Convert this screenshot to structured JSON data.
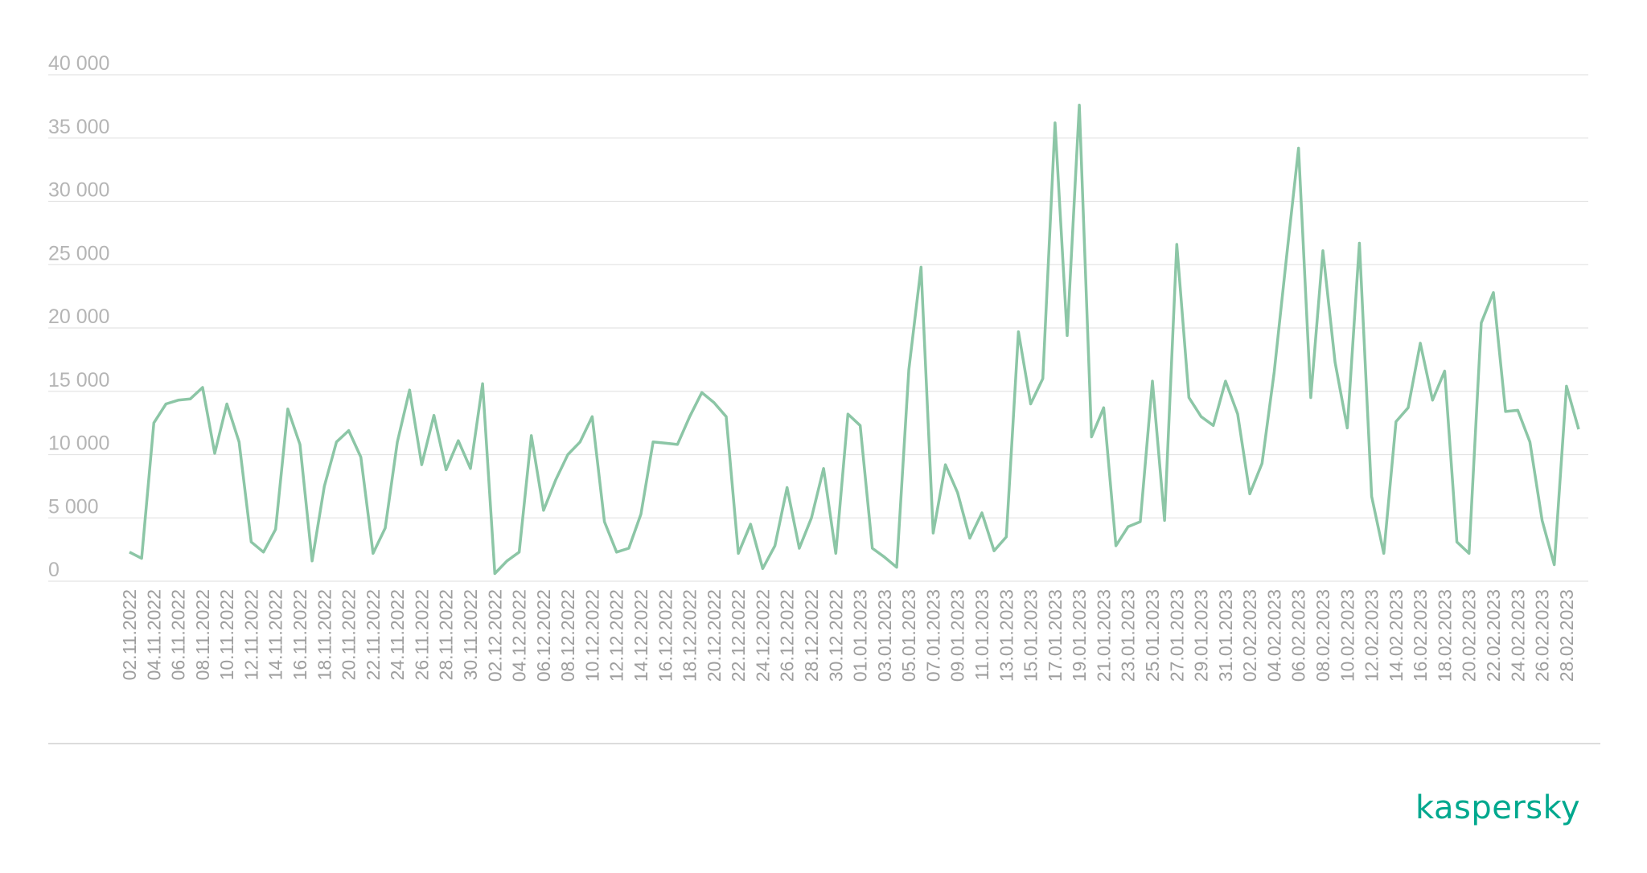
{
  "brand": {
    "logo_text": "kaspersky",
    "accent_color": "#00a88e"
  },
  "chart_data": {
    "type": "line",
    "title": "",
    "xlabel": "",
    "ylabel": "",
    "ylim": [
      0,
      40000
    ],
    "grid": true,
    "line_color": "#8cc6a6",
    "y_ticks": [
      {
        "value": 0,
        "label": "0"
      },
      {
        "value": 5000,
        "label": "5 000"
      },
      {
        "value": 10000,
        "label": "10 000"
      },
      {
        "value": 15000,
        "label": "15 000"
      },
      {
        "value": 20000,
        "label": "20 000"
      },
      {
        "value": 25000,
        "label": "25 000"
      },
      {
        "value": 30000,
        "label": "30 000"
      },
      {
        "value": 35000,
        "label": "35 000"
      },
      {
        "value": 40000,
        "label": "40 000"
      }
    ],
    "x_tick_labels": [
      "02.11.2022",
      "04.11.2022",
      "06.11.2022",
      "08.11.2022",
      "10.11.2022",
      "12.11.2022",
      "14.11.2022",
      "16.11.2022",
      "18.11.2022",
      "20.11.2022",
      "22.11.2022",
      "24.11.2022",
      "26.11.2022",
      "28.11.2022",
      "30.11.2022",
      "02.12.2022",
      "04.12.2022",
      "06.12.2022",
      "08.12.2022",
      "10.12.2022",
      "12.12.2022",
      "14.12.2022",
      "16.12.2022",
      "18.12.2022",
      "20.12.2022",
      "22.12.2022",
      "24.12.2022",
      "26.12.2022",
      "28.12.2022",
      "30.12.2022",
      "01.01.2023",
      "03.01.2023",
      "05.01.2023",
      "07.01.2023",
      "09.01.2023",
      "11.01.2023",
      "13.01.2023",
      "15.01.2023",
      "17.01.2023",
      "19.01.2023",
      "21.01.2023",
      "23.01.2023",
      "25.01.2023",
      "27.01.2023",
      "29.01.2023",
      "31.01.2023",
      "02.02.2023",
      "04.02.2023",
      "06.02.2023",
      "08.02.2023",
      "10.02.2023",
      "12.02.2023",
      "14.02.2023",
      "16.02.2023",
      "18.02.2023",
      "20.02.2023",
      "22.02.2023",
      "24.02.2023",
      "26.02.2023",
      "28.02.2023"
    ],
    "series": [
      {
        "name": "",
        "start_date": "2022-11-02",
        "end_date": "2023-02-28",
        "values": [
          2300,
          1800,
          12500,
          14000,
          14300,
          14400,
          15300,
          10100,
          14000,
          11000,
          3100,
          2300,
          4100,
          13600,
          10800,
          1600,
          7500,
          11000,
          11900,
          9800,
          2200,
          4200,
          11000,
          15100,
          9200,
          13100,
          8800,
          11100,
          8900,
          15600,
          600,
          1600,
          2300,
          11500,
          5600,
          8000,
          10000,
          11000,
          13000,
          4700,
          2300,
          2600,
          5300,
          11000,
          10900,
          10800,
          13000,
          14900,
          14100,
          13000,
          2200,
          4500,
          1000,
          2800,
          7400,
          2600,
          5000,
          8900,
          2200,
          13200,
          12300,
          2600,
          1900,
          1100,
          16700,
          24800,
          3800,
          9200,
          7000,
          3400,
          5400,
          2400,
          3500,
          19700,
          14000,
          16000,
          36200,
          19400,
          37600,
          11400,
          13700,
          2800,
          4300,
          4700,
          15800,
          4800,
          26600,
          14500,
          13000,
          12300,
          15800,
          13200,
          6900,
          9300,
          16500,
          25500,
          34200,
          14500,
          26100,
          17300,
          12100,
          26700,
          6700,
          2200,
          12600,
          13700,
          18800,
          14300,
          16600,
          3100,
          2200,
          20400,
          22800,
          13400,
          13500,
          11000,
          4800,
          1300,
          15400,
          12000
        ]
      }
    ]
  }
}
